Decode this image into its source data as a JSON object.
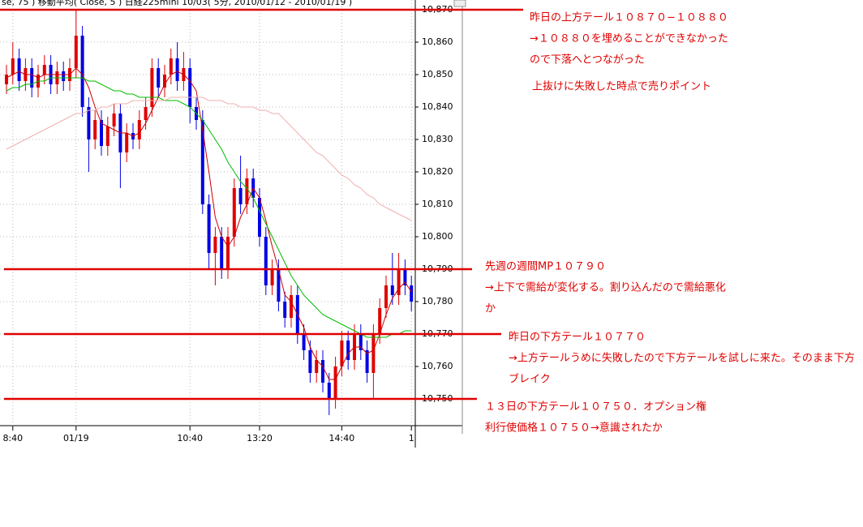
{
  "chart_data": {
    "type": "candlestick",
    "header": "se, 75 )    移動平均( Close, 5 )    日経225mini 10/03( 5分, 2010/01/12 - 2010/01/19 )",
    "categories": [
      null,
      "8:40",
      null,
      null,
      null,
      null,
      null,
      null,
      null,
      null,
      null,
      "01/19",
      null,
      null,
      null,
      null,
      null,
      null,
      null,
      null,
      null,
      null,
      null,
      null,
      null,
      null,
      null,
      null,
      null,
      "10:40",
      null,
      null,
      null,
      null,
      null,
      null,
      null,
      null,
      null,
      null,
      "13:20",
      null,
      null,
      null,
      null,
      null,
      null,
      null,
      null,
      null,
      null,
      null,
      null,
      "14:40",
      null,
      null,
      null,
      null,
      null,
      null,
      null,
      null,
      null,
      null,
      "1"
    ],
    "open": [
      10847,
      10850,
      10855,
      10848,
      10852,
      10846,
      10850,
      10853,
      10847,
      10851,
      10848,
      10852,
      10862,
      10840,
      10830,
      10836,
      10828,
      10834,
      10838,
      10826,
      10832,
      10830,
      10836,
      10840,
      10852,
      10846,
      10850,
      10855,
      10848,
      10852,
      10840,
      10836,
      10810,
      10795,
      10800,
      10790,
      10800,
      10815,
      10810,
      10818,
      10812,
      10800,
      10785,
      10790,
      10780,
      10775,
      10782,
      10770,
      10765,
      10758,
      10762,
      10755,
      10750,
      10760,
      10768,
      10762,
      10770,
      10765,
      10758,
      10770,
      10778,
      10785,
      10782,
      10790,
      10785
    ],
    "high": [
      10853,
      10860,
      10858,
      10855,
      10855,
      10853,
      10856,
      10856,
      10854,
      10854,
      10855,
      10870,
      10865,
      10843,
      10839,
      10839,
      10837,
      10841,
      10841,
      10835,
      10835,
      10839,
      10843,
      10855,
      10855,
      10853,
      10858,
      10860,
      10857,
      10855,
      10843,
      10839,
      10813,
      10803,
      10803,
      10803,
      10818,
      10825,
      10821,
      10821,
      10815,
      10803,
      10793,
      10793,
      10783,
      10785,
      10785,
      10773,
      10768,
      10765,
      10765,
      10758,
      10763,
      10771,
      10771,
      10773,
      10773,
      10768,
      10773,
      10781,
      10788,
      10795,
      10795,
      10793,
      10788
    ],
    "low": [
      10844,
      10847,
      10845,
      10845,
      10843,
      10843,
      10847,
      10844,
      10844,
      10845,
      10845,
      10849,
      10837,
      10820,
      10827,
      10825,
      10825,
      10831,
      10815,
      10823,
      10827,
      10827,
      10833,
      10837,
      10843,
      10843,
      10847,
      10845,
      10845,
      10835,
      10833,
      10807,
      10790,
      10785,
      10787,
      10787,
      10797,
      10807,
      10807,
      10809,
      10797,
      10782,
      10782,
      10777,
      10772,
      10772,
      10767,
      10762,
      10755,
      10755,
      10752,
      10745,
      10747,
      10757,
      10759,
      10759,
      10762,
      10755,
      10750,
      10767,
      10775,
      10779,
      10779,
      10782,
      10777
    ],
    "close": [
      10850,
      10855,
      10848,
      10852,
      10846,
      10850,
      10853,
      10847,
      10851,
      10848,
      10852,
      10862,
      10840,
      10830,
      10836,
      10828,
      10834,
      10838,
      10826,
      10832,
      10830,
      10836,
      10840,
      10852,
      10846,
      10850,
      10855,
      10848,
      10852,
      10840,
      10836,
      10810,
      10795,
      10800,
      10790,
      10800,
      10815,
      10810,
      10818,
      10812,
      10800,
      10785,
      10790,
      10780,
      10775,
      10782,
      10770,
      10765,
      10758,
      10762,
      10755,
      10750,
      10760,
      10768,
      10762,
      10770,
      10765,
      10758,
      10770,
      10778,
      10785,
      10782,
      10790,
      10785,
      10780
    ],
    "up_color": "#e00000",
    "down_color": "#0000e6",
    "lines": [
      {
        "color": "#cc0000",
        "values": [
          10849,
          10850,
          10851,
          10850,
          10850,
          10849,
          10850,
          10850,
          10850,
          10850,
          10850,
          10852,
          10850,
          10846,
          10840,
          10835,
          10834,
          10833,
          10832,
          10832,
          10831,
          10832,
          10835,
          10839,
          10843,
          10847,
          10850,
          10851,
          10850,
          10848,
          10845,
          10833,
          10820,
          10806,
          10800,
          10797,
          10800,
          10806,
          10810,
          10815,
          10812,
          10805,
          10797,
          10790,
          10782,
          10780,
          10776,
          10772,
          10766,
          10762,
          10760,
          10756,
          10756,
          10760,
          10764,
          10766,
          10766,
          10764,
          10765,
          10770,
          10776,
          10781,
          10784,
          10786,
          10783
        ]
      },
      {
        "color": "#00bb00",
        "values": [
          10845,
          10846,
          10846,
          10847,
          10847,
          10848,
          10848,
          10849,
          10849,
          10849,
          10849,
          10849,
          10849,
          10848,
          10848,
          10847,
          10846,
          10845,
          10845,
          10844,
          10844,
          10843,
          10843,
          10843,
          10843,
          10842,
          10842,
          10842,
          10841,
          10840,
          10838,
          10836,
          10833,
          10830,
          10827,
          10823,
          10820,
          10817,
          10815,
          10812,
          10808,
          10804,
          10800,
          10796,
          10792,
          10788,
          10785,
          10782,
          10780,
          10778,
          10776,
          10775,
          10774,
          10773,
          10772,
          10771,
          10770,
          10769,
          10769,
          10769,
          10769,
          10770,
          10770,
          10771,
          10771
        ]
      },
      {
        "color": "#f0b0b0",
        "values": [
          10827,
          10828,
          10829,
          10830,
          10831,
          10832,
          10833,
          10834,
          10835,
          10836,
          10837,
          10838,
          10838,
          10839,
          10839,
          10840,
          10840,
          10841,
          10841,
          10841,
          10842,
          10842,
          10842,
          10842,
          10842,
          10842,
          10843,
          10843,
          10843,
          10843,
          10843,
          10843,
          10842,
          10842,
          10842,
          10841,
          10841,
          10840,
          10840,
          10840,
          10839,
          10839,
          10838,
          10838,
          10836,
          10834,
          10832,
          10830,
          10828,
          10826,
          10825,
          10823,
          10821,
          10819,
          10818,
          10816,
          10815,
          10813,
          10812,
          10810,
          10809,
          10808,
          10807,
          10806,
          10805
        ]
      }
    ],
    "levels": [
      10870,
      10790,
      10770,
      10750
    ],
    "level_color": "#e00000",
    "ylim": [
      10735,
      10872
    ],
    "yticks": [
      {
        "value": 10750,
        "label": "10,750"
      },
      {
        "value": 10760,
        "label": "10,760"
      },
      {
        "value": 10770,
        "label": "10,770"
      },
      {
        "value": 10780,
        "label": "10,780"
      },
      {
        "value": 10790,
        "label": "10,790"
      },
      {
        "value": 10800,
        "label": "10,800"
      },
      {
        "value": 10810,
        "label": "10,810"
      },
      {
        "value": 10820,
        "label": "10,820"
      },
      {
        "value": 10830,
        "label": "10,830"
      },
      {
        "value": 10840,
        "label": "10,840"
      },
      {
        "value": 10850,
        "label": "10,850"
      },
      {
        "value": 10860,
        "label": "10,860"
      },
      {
        "value": 10870,
        "label": "10,870"
      }
    ],
    "grid": true,
    "annotations": [
      [
        "昨日の上方テール１０８７０−１０８８０",
        "→１０８８０を埋めることができなかった",
        "ので下落へとつながった"
      ],
      [
        "上抜けに失敗した時点で売りポイント"
      ],
      [
        "先週の週間MP１０７９０",
        "→上下で需給が変化する。割り込んだので需給悪化",
        "か"
      ],
      [
        "昨日の下方テール１０７７０",
        "→上方テールうめに失敗したので下方テールを試しに来た。そのまま下方",
        "ブレイク"
      ],
      [
        "１３日の下方テール１０７５０．オプション権",
        "利行使価格１０７５０→意識されたか"
      ]
    ]
  }
}
